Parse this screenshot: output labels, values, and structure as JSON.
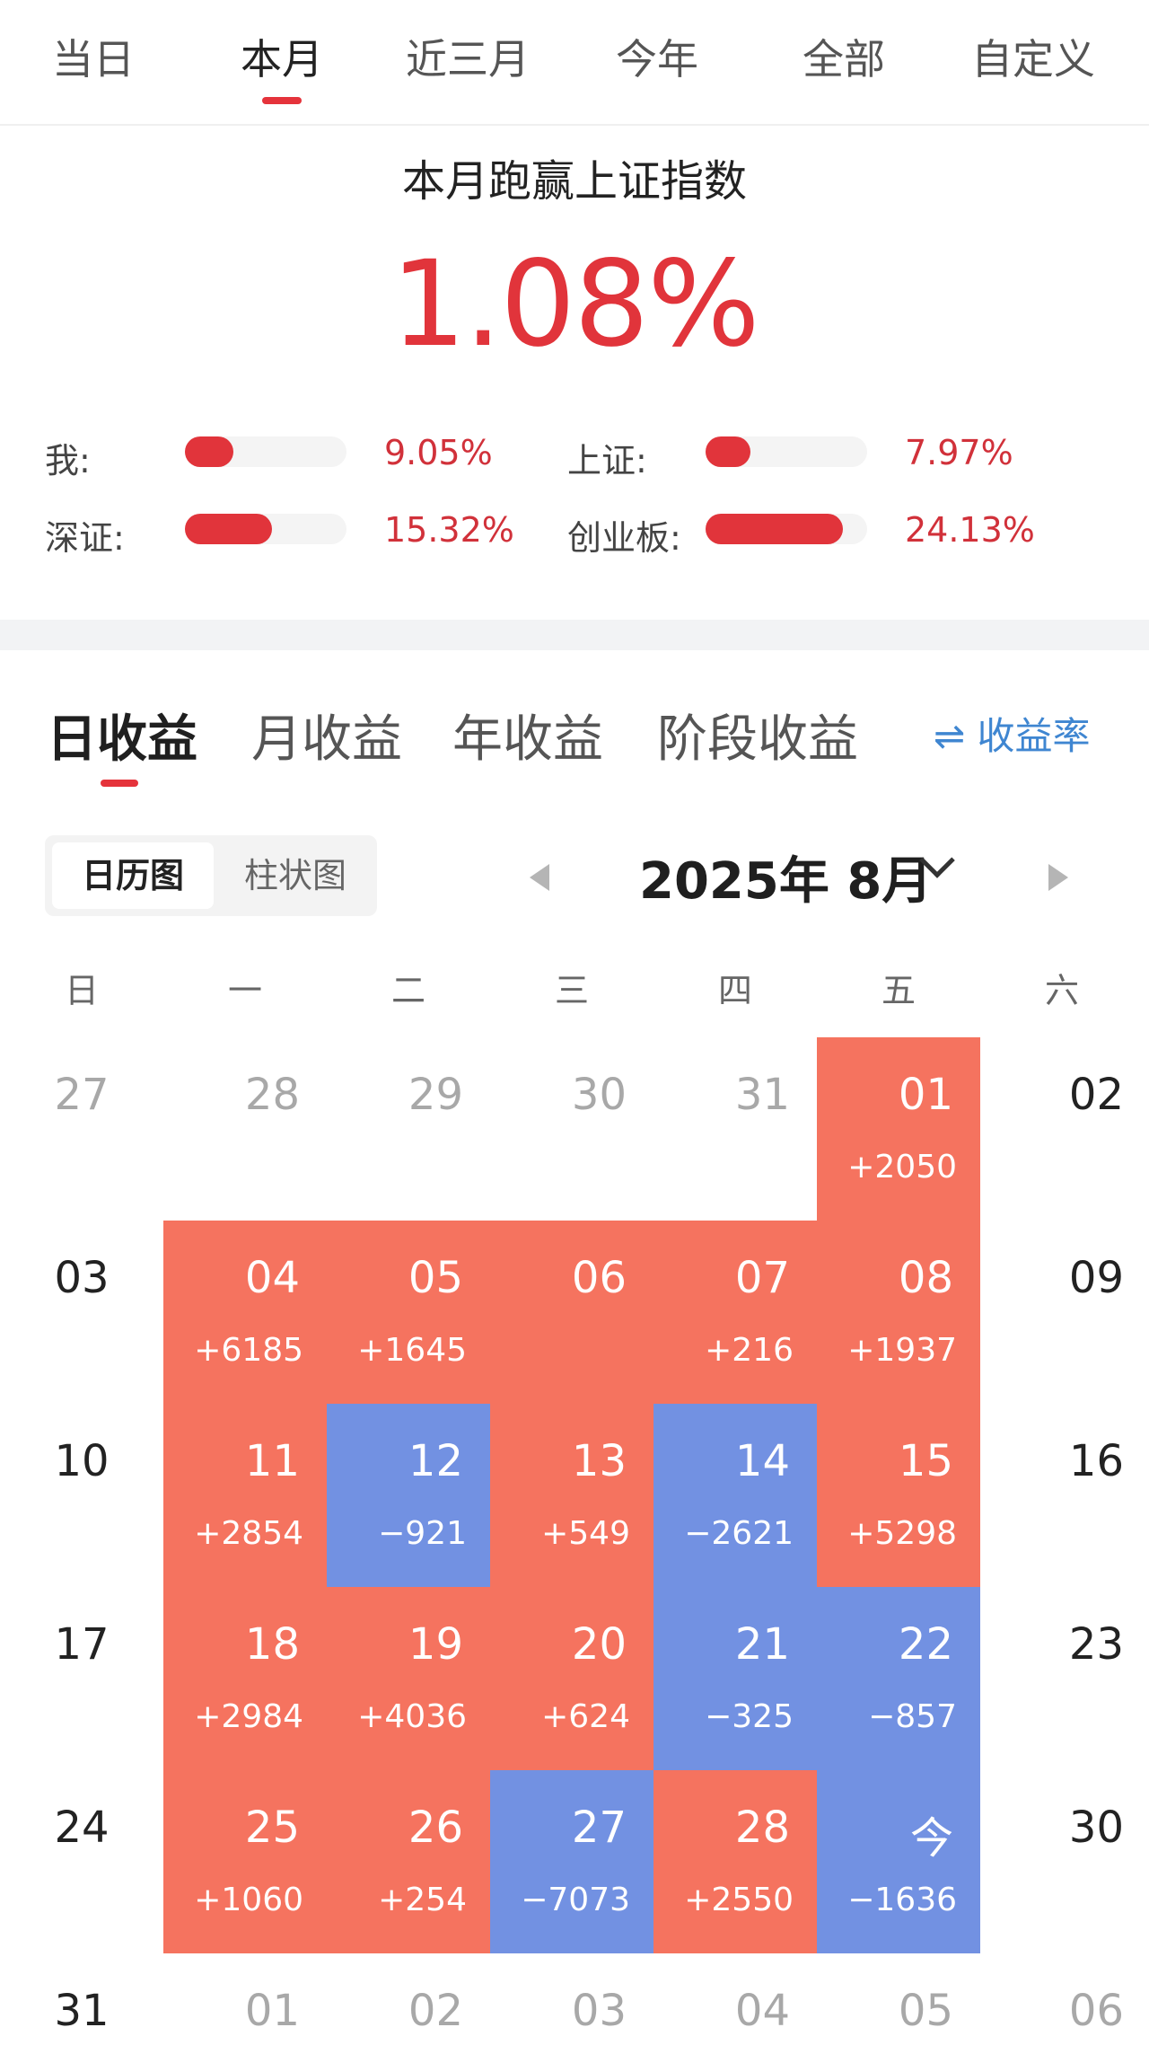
{
  "period_tabs": [
    "当日",
    "本月",
    "近三月",
    "今年",
    "全部",
    "自定义"
  ],
  "active_period": "本月",
  "beat": {
    "title": "本月跑赢上证指数",
    "value": "1.08%"
  },
  "comparison": [
    {
      "label": "我:",
      "value": "9.05%",
      "fill": 0.3
    },
    {
      "label": "上证:",
      "value": "7.97%",
      "fill": 0.28
    },
    {
      "label": "深证:",
      "value": "15.32%",
      "fill": 0.54
    },
    {
      "label": "创业板:",
      "value": "24.13%",
      "fill": 0.85
    }
  ],
  "income_tabs": [
    "日收益",
    "月收益",
    "年收益",
    "阶段收益"
  ],
  "active_income_tab": "日收益",
  "rate_toggle": "⇌ 收益率",
  "view_switch": {
    "calendar": "日历图",
    "bar": "柱状图",
    "active": "日历图"
  },
  "month_title": "2025年 8月",
  "weekdays": [
    "日",
    "一",
    "二",
    "三",
    "四",
    "五",
    "六"
  ],
  "calendar": [
    [
      {
        "day": "27",
        "style": "muted"
      },
      {
        "day": "28",
        "style": "muted"
      },
      {
        "day": "29",
        "style": "muted"
      },
      {
        "day": "30",
        "style": "muted"
      },
      {
        "day": "31",
        "style": "muted"
      },
      {
        "day": "01",
        "profit": "+2050",
        "state": "up"
      },
      {
        "day": "02",
        "style": "plain"
      }
    ],
    [
      {
        "day": "03",
        "style": "plain"
      },
      {
        "day": "04",
        "profit": "+6185",
        "state": "up"
      },
      {
        "day": "05",
        "profit": "+1645",
        "state": "up"
      },
      {
        "day": "06",
        "profit": "",
        "state": "up"
      },
      {
        "day": "07",
        "profit": "+216",
        "state": "up"
      },
      {
        "day": "08",
        "profit": "+1937",
        "state": "up"
      },
      {
        "day": "09",
        "style": "plain"
      }
    ],
    [
      {
        "day": "10",
        "style": "plain"
      },
      {
        "day": "11",
        "profit": "+2854",
        "state": "up"
      },
      {
        "day": "12",
        "profit": "−921",
        "state": "down"
      },
      {
        "day": "13",
        "profit": "+549",
        "state": "up"
      },
      {
        "day": "14",
        "profit": "−2621",
        "state": "down"
      },
      {
        "day": "15",
        "profit": "+5298",
        "state": "up"
      },
      {
        "day": "16",
        "style": "plain"
      }
    ],
    [
      {
        "day": "17",
        "style": "plain"
      },
      {
        "day": "18",
        "profit": "+2984",
        "state": "up"
      },
      {
        "day": "19",
        "profit": "+4036",
        "state": "up"
      },
      {
        "day": "20",
        "profit": "+624",
        "state": "up"
      },
      {
        "day": "21",
        "profit": "−325",
        "state": "down"
      },
      {
        "day": "22",
        "profit": "−857",
        "state": "down"
      },
      {
        "day": "23",
        "style": "plain"
      }
    ],
    [
      {
        "day": "24",
        "style": "plain"
      },
      {
        "day": "25",
        "profit": "+1060",
        "state": "up"
      },
      {
        "day": "26",
        "profit": "+254",
        "state": "up"
      },
      {
        "day": "27",
        "profit": "−7073",
        "state": "down"
      },
      {
        "day": "28",
        "profit": "+2550",
        "state": "up"
      },
      {
        "day": "今",
        "profit": "−1636",
        "state": "down"
      },
      {
        "day": "30",
        "style": "plain"
      }
    ],
    [
      {
        "day": "31",
        "style": "plain"
      },
      {
        "day": "01",
        "style": "muted"
      },
      {
        "day": "02",
        "style": "muted"
      },
      {
        "day": "03",
        "style": "muted"
      },
      {
        "day": "04",
        "style": "muted"
      },
      {
        "day": "05",
        "style": "muted"
      },
      {
        "day": "06",
        "style": "muted"
      }
    ]
  ],
  "colors": {
    "accent": "#e1343b",
    "gain": "#f5735f",
    "loss": "#7291e2",
    "link": "#3f86d1"
  }
}
